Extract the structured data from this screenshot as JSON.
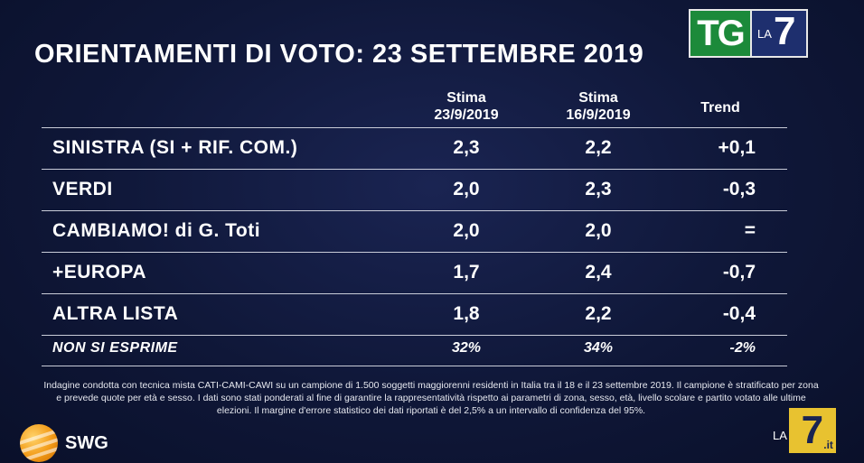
{
  "title": "ORIENTAMENTI DI VOTO: 23 SETTEMBRE 2019",
  "logo_top": {
    "green_text": "TG",
    "la": "LA",
    "seven": "7"
  },
  "columns": {
    "col1_line1": "Stima",
    "col1_line2": "23/9/2019",
    "col2_line1": "Stima",
    "col2_line2": "16/9/2019",
    "col3": "Trend"
  },
  "rows": [
    {
      "label": "SINISTRA (SI + RIF. COM.)",
      "v1": "2,3",
      "v2": "2,2",
      "trend": "+0,1"
    },
    {
      "label": "VERDI",
      "v1": "2,0",
      "v2": "2,3",
      "trend": "-0,3"
    },
    {
      "label": "CAMBIAMO! di G. Toti",
      "v1": "2,0",
      "v2": "2,0",
      "trend": "="
    },
    {
      "label": "+EUROPA",
      "v1": "1,7",
      "v2": "2,4",
      "trend": "-0,7"
    },
    {
      "label": "ALTRA LISTA",
      "v1": "1,8",
      "v2": "2,2",
      "trend": "-0,4"
    },
    {
      "label": "NON SI ESPRIME",
      "v1": "32%",
      "v2": "34%",
      "trend": "-2%"
    }
  ],
  "footnote": "Indagine condotta con tecnica mista CATI-CAMI-CAWI su un campione di 1.500 soggetti maggiorenni residenti in Italia tra il 18 e il 23 settembre 2019. Il campione è stratificato per zona e prevede quote per età e sesso. I dati sono stati ponderati al fine di garantire la rappresentatività rispetto ai parametri di zona, sesso, età, livello scolare e partito votato alle ultime elezioni. Il margine d'errore statistico dei dati riportati è del 2,5% a un intervallo di confidenza del 95%.",
  "swg": {
    "name": "SWG",
    "icon": "globe-icon"
  },
  "logo_bottom": {
    "la": "LA",
    "seven": "7",
    "suffix": ".it"
  }
}
